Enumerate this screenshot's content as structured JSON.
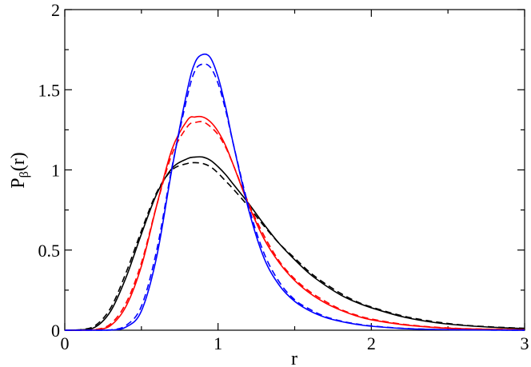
{
  "chart_data": {
    "type": "line",
    "title": "",
    "xlabel": "r",
    "ylabel_main": "P",
    "ylabel_sub": "β",
    "ylabel_rest": "(r)",
    "xlim": [
      0,
      3
    ],
    "ylim": [
      0,
      2
    ],
    "x_ticks": [
      0,
      1,
      2,
      3
    ],
    "x_tick_labels": [
      "0",
      "1",
      "2",
      "3"
    ],
    "y_ticks": [
      0,
      0.5,
      1,
      1.5,
      2
    ],
    "y_tick_labels": [
      "0",
      "0.5",
      "1",
      "1.5",
      "2"
    ],
    "grid": false,
    "legend": "none",
    "x": [
      0.0,
      0.1,
      0.2,
      0.3,
      0.4,
      0.5,
      0.6,
      0.7,
      0.8,
      0.85,
      0.9,
      0.95,
      1.0,
      1.05,
      1.1,
      1.2,
      1.3,
      1.4,
      1.5,
      1.6,
      1.7,
      1.8,
      1.9,
      2.0,
      2.2,
      2.4,
      2.6,
      2.8,
      3.0
    ],
    "series": [
      {
        "color": "#000000",
        "dash": false,
        "values": [
          0,
          0.002,
          0.02,
          0.12,
          0.33,
          0.6,
          0.85,
          1.01,
          1.07,
          1.08,
          1.08,
          1.06,
          1.02,
          0.97,
          0.91,
          0.79,
          0.66,
          0.54,
          0.44,
          0.35,
          0.28,
          0.22,
          0.175,
          0.14,
          0.085,
          0.05,
          0.03,
          0.018,
          0.01
        ]
      },
      {
        "color": "#000000",
        "dash": true,
        "values": [
          0,
          0.003,
          0.03,
          0.14,
          0.36,
          0.62,
          0.86,
          1.0,
          1.04,
          1.045,
          1.04,
          1.02,
          0.98,
          0.93,
          0.88,
          0.77,
          0.65,
          0.54,
          0.45,
          0.36,
          0.29,
          0.23,
          0.18,
          0.145,
          0.09,
          0.055,
          0.032,
          0.02,
          0.012
        ]
      },
      {
        "color": "#ff0000",
        "dash": false,
        "values": [
          0,
          0.0,
          0.003,
          0.03,
          0.15,
          0.4,
          0.78,
          1.13,
          1.31,
          1.33,
          1.33,
          1.3,
          1.24,
          1.15,
          1.03,
          0.78,
          0.57,
          0.42,
          0.31,
          0.23,
          0.17,
          0.125,
          0.09,
          0.065,
          0.035,
          0.018,
          0.009,
          0.005,
          0.003
        ]
      },
      {
        "color": "#ff0000",
        "dash": true,
        "values": [
          0,
          0.0,
          0.004,
          0.04,
          0.17,
          0.42,
          0.78,
          1.1,
          1.27,
          1.295,
          1.3,
          1.27,
          1.22,
          1.14,
          1.03,
          0.79,
          0.59,
          0.43,
          0.32,
          0.24,
          0.18,
          0.13,
          0.095,
          0.07,
          0.038,
          0.02,
          0.01,
          0.006,
          0.003
        ]
      },
      {
        "color": "#0000ff",
        "dash": false,
        "values": [
          0,
          0.0,
          0.0,
          0.001,
          0.02,
          0.12,
          0.46,
          1.01,
          1.5,
          1.67,
          1.72,
          1.7,
          1.58,
          1.39,
          1.16,
          0.75,
          0.45,
          0.28,
          0.18,
          0.12,
          0.08,
          0.055,
          0.037,
          0.025,
          0.011,
          0.005,
          0.002,
          0.001,
          0.0
        ]
      },
      {
        "color": "#0000ff",
        "dash": true,
        "values": [
          0,
          0.0,
          0.0,
          0.002,
          0.03,
          0.15,
          0.5,
          1.02,
          1.46,
          1.62,
          1.66,
          1.64,
          1.54,
          1.37,
          1.16,
          0.77,
          0.48,
          0.3,
          0.19,
          0.13,
          0.085,
          0.058,
          0.04,
          0.027,
          0.012,
          0.005,
          0.002,
          0.001,
          0.0
        ]
      }
    ]
  }
}
